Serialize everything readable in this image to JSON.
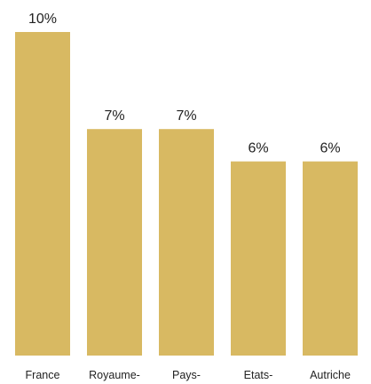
{
  "chart_data": {
    "type": "bar",
    "categories": [
      "France",
      "Royaume-",
      "Pays-",
      "Etats-",
      "Autriche"
    ],
    "values": [
      10,
      7,
      7,
      6,
      6
    ],
    "data_labels": [
      "10%",
      "7%",
      "7%",
      "6%",
      "6%"
    ],
    "title": "",
    "xlabel": "",
    "ylabel": "",
    "ylim": [
      0,
      10
    ],
    "grid": false,
    "legend": "none",
    "bar_color": "#d8b962"
  }
}
